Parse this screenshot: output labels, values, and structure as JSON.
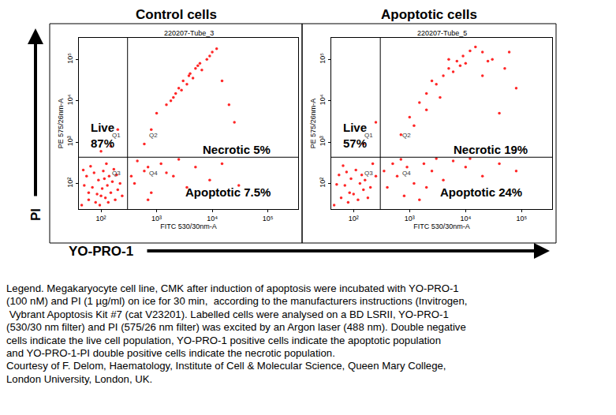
{
  "chart_data": [
    {
      "type": "scatter",
      "title": "Control cells",
      "subtitle": "220207-Tube_3",
      "x_label": "FITC 530/30nm-A",
      "y_label": "PE 575/26nm-A",
      "color": "#ff0000",
      "marker": "dot",
      "log": true,
      "grid": false,
      "xlim": [
        40,
        350000
      ],
      "ylim": [
        24,
        330000
      ],
      "xticks": [
        {
          "value": 100,
          "label": "10²"
        },
        {
          "value": 1000,
          "label": "10³"
        },
        {
          "value": 10000,
          "label": "10⁴"
        },
        {
          "value": 100000,
          "label": "10⁵"
        }
      ],
      "yticks": [
        {
          "value": 100,
          "label": "10²"
        },
        {
          "value": 1000,
          "label": "10³"
        },
        {
          "value": 10000,
          "label": "10⁴"
        },
        {
          "value": 100000,
          "label": "10⁵"
        }
      ],
      "gates": {
        "x": 300,
        "y": 430
      },
      "quadrants": [
        "Q1",
        "Q2",
        "Q3",
        "Q4"
      ],
      "annotations": [
        {
          "lines": [
            "Live",
            "87%"
          ]
        },
        {
          "lines": [
            "Necrotic 5%"
          ]
        },
        {
          "lines": [
            "Apoptotic 7.5%"
          ]
        }
      ],
      "x": [
        45,
        60,
        80,
        100,
        120,
        70,
        90,
        150,
        55,
        110,
        130,
        180,
        200,
        65,
        85,
        140,
        160,
        50,
        75,
        95,
        170,
        220,
        240,
        125,
        190,
        60,
        105,
        135,
        48,
        115,
        400,
        600,
        800,
        1200,
        2000,
        3500,
        5000,
        9000,
        15000,
        30000,
        450,
        700,
        1500,
        2500,
        700,
        350,
        1000,
        1500,
        2000,
        2500,
        3000,
        4000,
        5000,
        6000,
        8000,
        10000,
        12000,
        2200,
        3500,
        4500,
        2800,
        3800,
        6500,
        9000,
        1800,
        5500,
        15000,
        20000,
        25000,
        800,
        600,
        150,
        200,
        100
      ],
      "y": [
        30,
        40,
        35,
        50,
        45,
        80,
        120,
        60,
        150,
        200,
        90,
        40,
        70,
        260,
        55,
        150,
        110,
        90,
        180,
        30,
        220,
        100,
        50,
        300,
        160,
        60,
        75,
        35,
        210,
        130,
        100,
        200,
        60,
        300,
        150,
        80,
        250,
        120,
        300,
        90,
        350,
        40,
        180,
        380,
        250,
        150,
        5000,
        8000,
        12000,
        20000,
        30000,
        45000,
        60000,
        80000,
        100000,
        150000,
        180000,
        15000,
        25000,
        35000,
        18000,
        40000,
        55000,
        120000,
        10000,
        70000,
        30000,
        8000,
        3000,
        2000,
        900,
        800,
        2000,
        600
      ]
    },
    {
      "type": "scatter",
      "title": "Apoptotic cells",
      "subtitle": "220207-Tube_5",
      "x_label": "FITC 530/30nm-A",
      "y_label": "PE 575/26nm-A",
      "color": "#ff0000",
      "marker": "dot",
      "log": true,
      "grid": false,
      "xlim": [
        40,
        350000
      ],
      "ylim": [
        24,
        330000
      ],
      "xticks": [
        {
          "value": 100,
          "label": "10²"
        },
        {
          "value": 1000,
          "label": "10³"
        },
        {
          "value": 10000,
          "label": "10⁴"
        },
        {
          "value": 100000,
          "label": "10⁵"
        }
      ],
      "yticks": [
        {
          "value": 100,
          "label": "10²"
        },
        {
          "value": 1000,
          "label": "10³"
        },
        {
          "value": 10000,
          "label": "10⁴"
        },
        {
          "value": 100000,
          "label": "10⁵"
        }
      ],
      "gates": {
        "x": 300,
        "y": 430
      },
      "quadrants": [
        "Q1",
        "Q2",
        "Q3",
        "Q4"
      ],
      "annotations": [
        {
          "lines": [
            "Live",
            "57%"
          ]
        },
        {
          "lines": [
            "Necrotic 19%"
          ]
        },
        {
          "lines": [
            "Apoptotic 24%"
          ]
        }
      ],
      "x": [
        45,
        60,
        80,
        100,
        120,
        70,
        90,
        150,
        55,
        110,
        130,
        180,
        200,
        65,
        85,
        140,
        160,
        50,
        75,
        250,
        220,
        400,
        600,
        900,
        1200,
        1800,
        2500,
        4000,
        6000,
        10000,
        20000,
        40000,
        80000,
        500,
        800,
        1500,
        3000,
        700,
        350,
        2000,
        12000,
        1000,
        1500,
        2000,
        3000,
        4000,
        5000,
        7000,
        9000,
        12000,
        15000,
        20000,
        30000,
        50000,
        80000,
        40000,
        2500,
        6000,
        8000,
        10000,
        3500,
        20000,
        60000,
        1200,
        700,
        25000,
        5000,
        2000,
        150,
        250
      ],
      "y": [
        30,
        45,
        35,
        55,
        40,
        90,
        130,
        70,
        160,
        210,
        100,
        45,
        80,
        270,
        60,
        160,
        120,
        95,
        190,
        150,
        300,
        80,
        150,
        250,
        100,
        300,
        200,
        120,
        350,
        250,
        150,
        300,
        200,
        300,
        50,
        40,
        400,
        380,
        200,
        80,
        400,
        4000,
        9000,
        15000,
        25000,
        40000,
        60000,
        90000,
        120000,
        160000,
        200000,
        150000,
        100000,
        60000,
        20000,
        5000,
        30000,
        50000,
        70000,
        80000,
        12000,
        40000,
        150000,
        2500,
        1500,
        90000,
        100000,
        6000,
        900,
        3000
      ]
    }
  ],
  "figure": {
    "y_arrow_label": "PI",
    "x_arrow_label": "YO-PRO-1",
    "caption": [
      "Legend. Megakaryocyte cell line, CMK after induction of apoptosis were incubated with YO-PRO-1",
      "(100 nM) and PI (1 µg/ml) on ice for 30 min,  according to the manufacturers instructions (Invitrogen,",
      " Vybrant Apoptosis Kit #7 (cat V23201). Labelled cells were analysed on a BD LSRII, YO-PRO-1",
      "(530/30 nm filter) and PI (575/26 nm filter) was excited by an Argon laser (488 nm). Double negative",
      "cells indicate the live cell population, YO-PRO-1 positive cells indicate the apoptotic population",
      "and YO-PRO-1-PI double positive cells indicate the necrotic population.",
      "Courtesy of F. Delom, Haematology, Institute of Cell & Molecular Science, Queen Mary College,",
      "London University, London, UK."
    ]
  }
}
